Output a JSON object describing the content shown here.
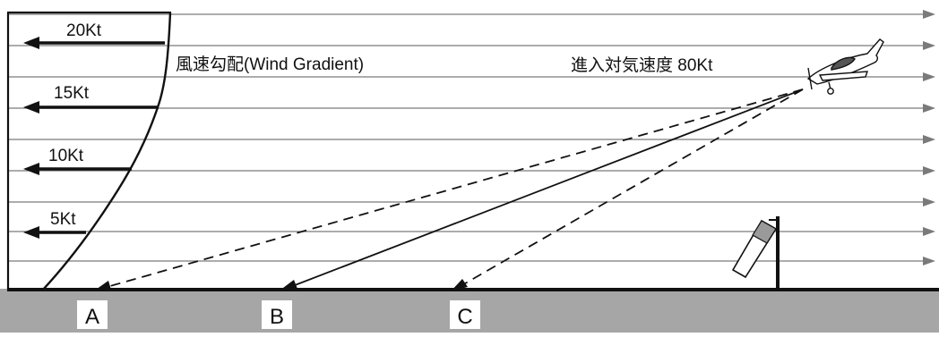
{
  "wind_labels": {
    "k20": "20Kt",
    "k15": "15Kt",
    "k10": "10Kt",
    "k5": "5Kt"
  },
  "gradient_label": "風速勾配(Wind Gradient)",
  "approach_label": "進入対気速度 80Kt",
  "touchdown_points": {
    "a": "A",
    "b": "B",
    "c": "C"
  },
  "colors": {
    "line": "#7a7a7a",
    "ink": "#111111",
    "ground": "#a6a6a6",
    "windsock": "#9a9a9a"
  }
}
